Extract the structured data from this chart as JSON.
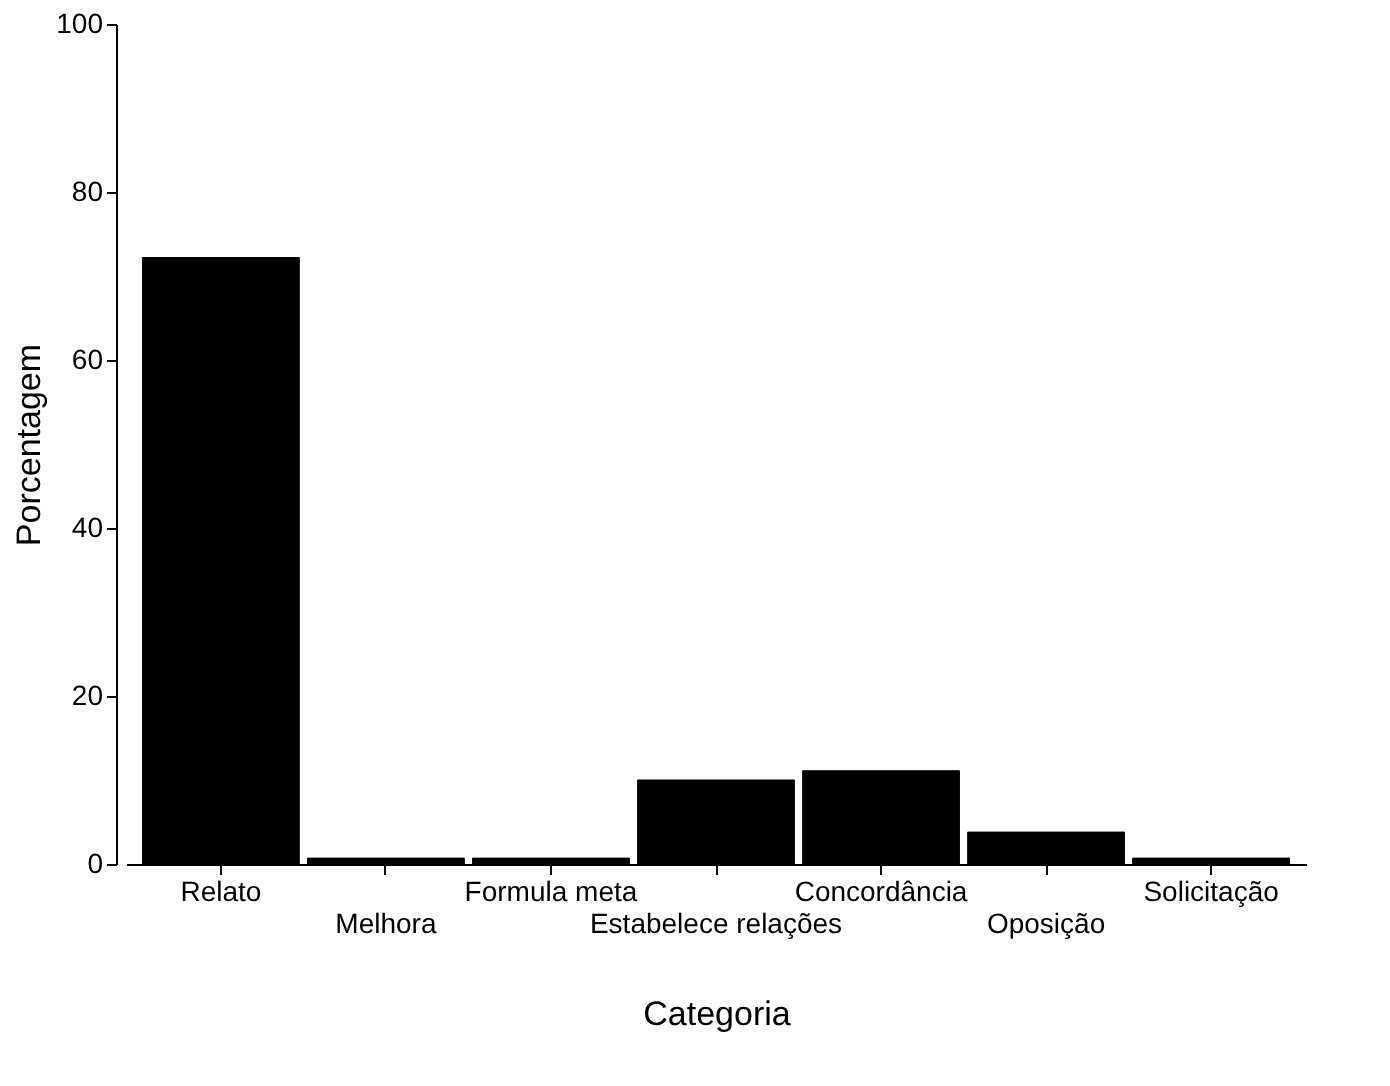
{
  "chart_data": {
    "type": "bar",
    "xlabel": "Categoria",
    "ylabel": "Porcentagem",
    "categories": [
      "Relato",
      "Melhora",
      "Formula meta",
      "Estabelece relações",
      "Concordância",
      "Oposição",
      "Solicitação"
    ],
    "values": [
      72.2,
      0.7,
      0.7,
      10.0,
      11.1,
      3.8,
      0.7
    ],
    "color": "#000000",
    "ylim": [
      0,
      100
    ],
    "yticks": [
      0,
      20,
      40,
      60,
      80,
      100
    ],
    "grid": false
  }
}
